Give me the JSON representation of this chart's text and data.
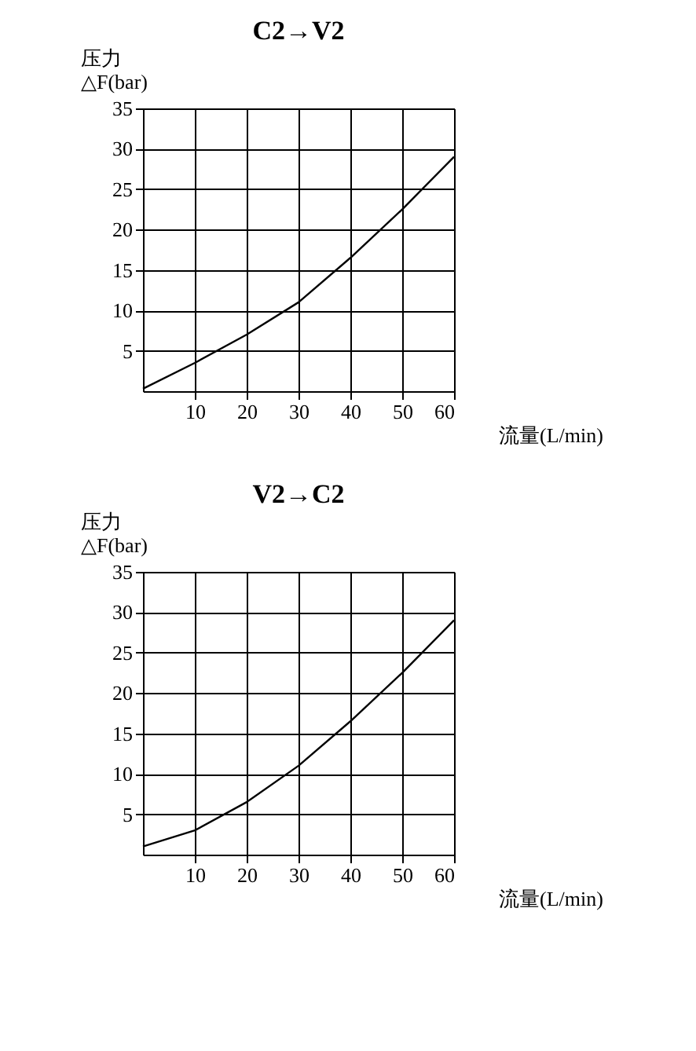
{
  "chart_data": [
    {
      "type": "line",
      "title": "C2→V2",
      "xlabel": "流量(L/min)",
      "ylabel": "压力\n△F(bar)",
      "x": [
        0,
        10,
        20,
        30,
        40,
        50,
        60
      ],
      "xlim": [
        0,
        60
      ],
      "ylim": [
        0,
        35
      ],
      "xticks": [
        10,
        20,
        30,
        40,
        50,
        60
      ],
      "yticks": [
        5,
        10,
        15,
        20,
        25,
        30,
        35
      ],
      "grid": true,
      "marker": "none",
      "line_style": "solid",
      "series": [
        {
          "color": "#000000",
          "values": [
            0.3,
            3.5,
            7,
            11,
            16.5,
            22.5,
            29
          ]
        }
      ]
    },
    {
      "type": "line",
      "title": "V2→C2",
      "xlabel": "流量(L/min)",
      "ylabel": "压力\n△F(bar)",
      "x": [
        0,
        10,
        20,
        30,
        40,
        50,
        60
      ],
      "xlim": [
        0,
        60
      ],
      "ylim": [
        0,
        35
      ],
      "xticks": [
        10,
        20,
        30,
        40,
        50,
        60
      ],
      "yticks": [
        5,
        10,
        15,
        20,
        25,
        30,
        35
      ],
      "grid": true,
      "marker": "none",
      "line_style": "solid",
      "series": [
        {
          "color": "#000000",
          "values": [
            1,
            3,
            6.5,
            11,
            16.5,
            22.5,
            29
          ]
        }
      ]
    }
  ]
}
